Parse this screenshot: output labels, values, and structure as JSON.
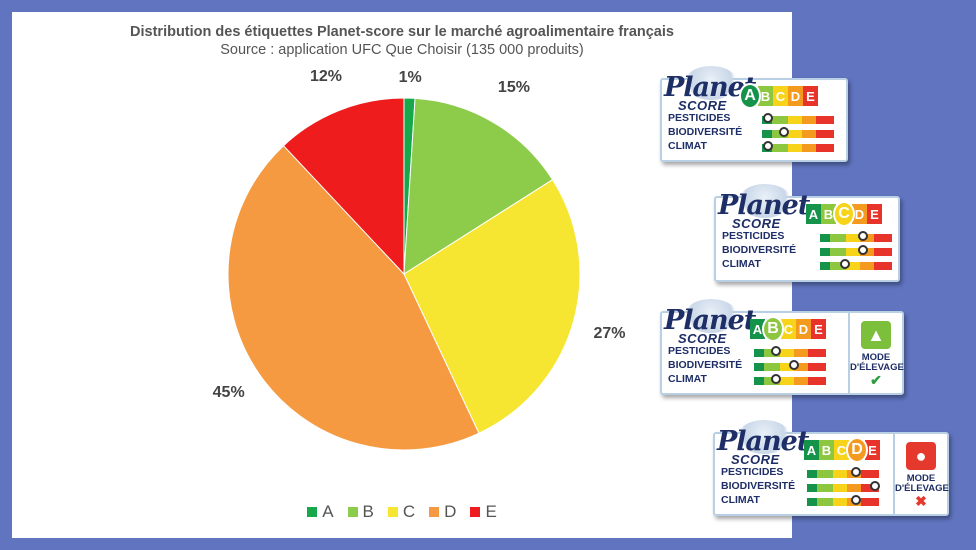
{
  "chart_data": {
    "type": "pie",
    "title": "Distribution des étiquettes Planet-score sur le marché agroalimentaire français",
    "subtitle": "Source : application UFC Que Choisir (135 000 produits)",
    "categories": [
      "A",
      "B",
      "C",
      "D",
      "E"
    ],
    "values": [
      1,
      15,
      27,
      45,
      12
    ],
    "value_labels": [
      "1%",
      "15%",
      "27%",
      "45%",
      "12%"
    ],
    "colors": [
      "#16a84a",
      "#8dcb4a",
      "#f6e632",
      "#f59a40",
      "#ee1c1c"
    ],
    "legend_position": "bottom"
  },
  "labels": [
    {
      "brand_top": "Planet",
      "brand_bottom": "SCORE",
      "grades": [
        "A",
        "B",
        "C",
        "D",
        "E"
      ],
      "selected": 0,
      "rows": [
        {
          "name": "PESTICIDES",
          "level": 0.08
        },
        {
          "name": "BIODIVERSITÉ",
          "level": 0.3
        },
        {
          "name": "CLIMAT",
          "level": 0.08
        }
      ],
      "mode": null
    },
    {
      "brand_top": "Planet",
      "brand_bottom": "SCORE",
      "grades": [
        "A",
        "B",
        "C",
        "D",
        "E"
      ],
      "selected": 2,
      "rows": [
        {
          "name": "PESTICIDES",
          "level": 0.6
        },
        {
          "name": "BIODIVERSITÉ",
          "level": 0.6
        },
        {
          "name": "CLIMAT",
          "level": 0.35
        }
      ],
      "mode": null
    },
    {
      "brand_top": "Planet",
      "brand_bottom": "SCORE",
      "grades": [
        "A",
        "B",
        "C",
        "D",
        "E"
      ],
      "selected": 1,
      "rows": [
        {
          "name": "PESTICIDES",
          "level": 0.3
        },
        {
          "name": "BIODIVERSITÉ",
          "level": 0.55
        },
        {
          "name": "CLIMAT",
          "level": 0.3
        }
      ],
      "mode": {
        "label_1": "MODE",
        "label_2": "D'ÉLEVAGE",
        "icon": "chicken-icon",
        "icon_color": "#7cbf3a",
        "verdict": "check-icon",
        "verdict_color": "#2e9e3e"
      }
    },
    {
      "brand_top": "Planet",
      "brand_bottom": "SCORE",
      "grades": [
        "A",
        "B",
        "C",
        "D",
        "E"
      ],
      "selected": 3,
      "rows": [
        {
          "name": "PESTICIDES",
          "level": 0.68
        },
        {
          "name": "BIODIVERSITÉ",
          "level": 0.95
        },
        {
          "name": "CLIMAT",
          "level": 0.68
        }
      ],
      "mode": {
        "label_1": "MODE",
        "label_2": "D'ÉLEVAGE",
        "icon": "pig-icon",
        "icon_color": "#e5392e",
        "verdict": "cross-icon",
        "verdict_color": "#e5392e"
      }
    }
  ]
}
